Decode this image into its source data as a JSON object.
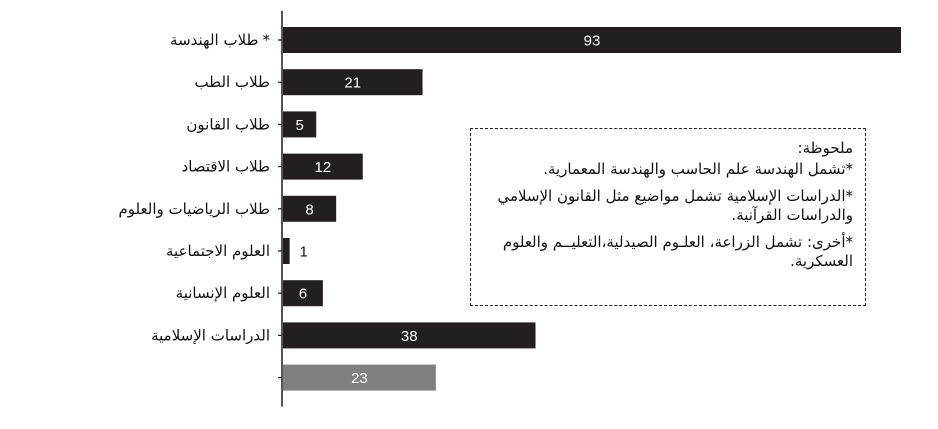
{
  "chart_data": {
    "type": "bar",
    "orientation": "horizontal",
    "categories": [
      "طلاب الهندسة",
      "طلاب الطب",
      "طلاب القانون",
      "طلاب الاقتصاد",
      "طلاب الرياضيات والعلوم",
      "العلوم الاجتماعية",
      "العلوم الإنسانية",
      "الدراسات الإسلامية",
      ""
    ],
    "category_markers": [
      "*",
      "",
      "",
      "",
      "",
      "",
      "",
      "",
      ""
    ],
    "values": [
      93,
      21,
      5,
      12,
      8,
      1,
      6,
      38,
      23
    ],
    "data_labels": [
      "93",
      "21",
      "5",
      "12",
      "8",
      "1",
      "6",
      "38",
      "23"
    ],
    "colors": [
      "#231f20",
      "#231f20",
      "#231f20",
      "#231f20",
      "#231f20",
      "#231f20",
      "#231f20",
      "#231f20",
      "#808080"
    ],
    "xlim": [
      0,
      93
    ],
    "grid": false,
    "legend": "none"
  },
  "note": {
    "title": "ملحوظة:",
    "items": [
      "*تشمل الهندسة علم الحاسب والهندسة المعمارية.",
      "*الدراسات الإسلامية تشمل مواضيع مثل القانون الإسلامي والدراسات القرآنية.",
      "*أخرى: تشمل الزراعة، العلـوم الصيدلية،التعليــم والعلوم العسكرية."
    ]
  },
  "colors": {
    "bar": "#231f20",
    "bar_other": "#808080",
    "text": "#111111"
  }
}
